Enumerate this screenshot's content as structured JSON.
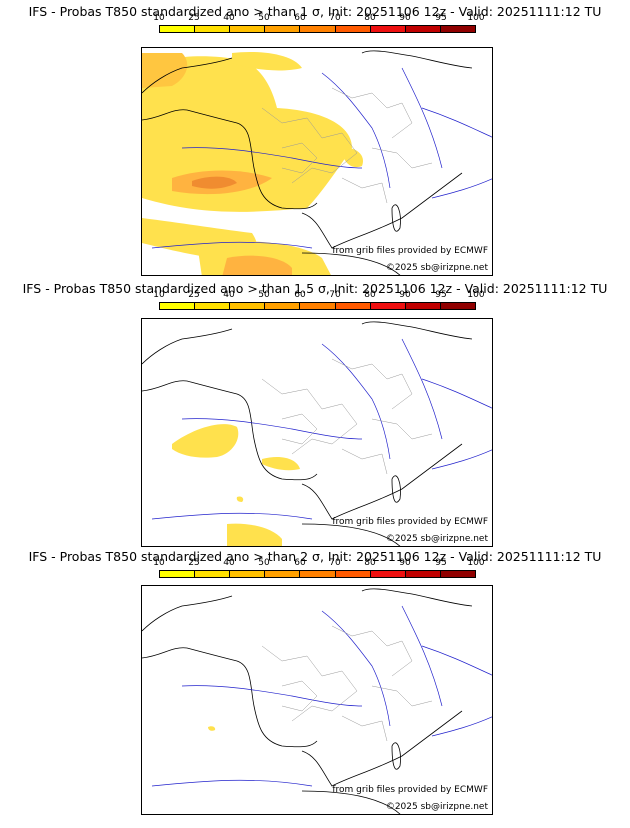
{
  "panels": [
    {
      "title": "IFS - Probas T850  standardized ano > than 1 σ, Init: 20251106 12z - Valid: 20251111:12 TU"
    },
    {
      "title": "IFS - Probas T850  standardized ano > than 1.5 σ, Init: 20251106 12z - Valid: 20251111:12 TU"
    },
    {
      "title": "IFS - Probas T850  standardized ano > than 2 σ, Init: 20251106 12z - Valid: 20251111:12 TU"
    }
  ],
  "colorbar": {
    "ticks": [
      "10",
      "25",
      "40",
      "50",
      "60",
      "70",
      "80",
      "90",
      "95",
      "100"
    ],
    "colors": [
      "#ffff00",
      "#ffe000",
      "#ffc000",
      "#ffa000",
      "#ff8000",
      "#ff5a00",
      "#ee1010",
      "#c00000",
      "#900000",
      "#600000"
    ]
  },
  "credit": {
    "source": "from grib files provided by ECMWF",
    "copyright": "©2025 sb@irizpne.net"
  },
  "colors": {
    "coast": "#000000",
    "river": "#2222cc",
    "border": "#999999"
  }
}
